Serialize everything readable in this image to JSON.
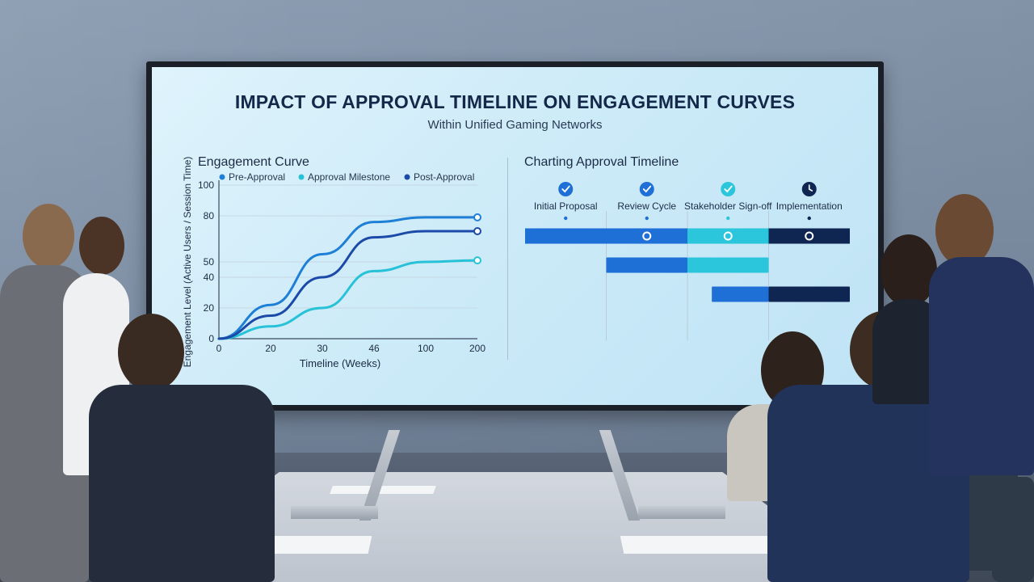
{
  "screen": {
    "title": "IMPACT OF APPROVAL TIMELINE ON ENGAGEMENT CURVES",
    "subtitle": "Within Unified Gaming Networks"
  },
  "colors": {
    "pre_approval": "#1e7fd6",
    "approval_milestone": "#27c2d8",
    "post_approval": "#1b4aa8",
    "implementation": "#0f2552",
    "title": "#14284a"
  },
  "chart_data": [
    {
      "type": "line",
      "title": "Engagement Curve",
      "xlabel": "Timeline (Weeks)",
      "ylabel": "Engagement Level (Active Users / Session Time)",
      "x_tick_labels": [
        "0",
        "20",
        "30",
        "46",
        "100",
        "200"
      ],
      "y_ticks": [
        0,
        20,
        40,
        50,
        80,
        100
      ],
      "ylim": [
        0,
        100
      ],
      "grid": "horizontal",
      "legend_position": "top",
      "series": [
        {
          "name": "Pre-Approval",
          "color": "#1e7fd6",
          "values": [
            0,
            22,
            55,
            76,
            79,
            79
          ]
        },
        {
          "name": "Approval Milestone",
          "color": "#27c2d8",
          "values": [
            0,
            8,
            20,
            44,
            50,
            51
          ]
        },
        {
          "name": "Post-Approval",
          "color": "#1b4aa8",
          "values": [
            0,
            15,
            40,
            66,
            70,
            70
          ]
        }
      ]
    },
    {
      "type": "gantt",
      "title": "Charting Approval Timeline",
      "phases": [
        {
          "label": "Initial Proposal",
          "icon": "check-icon"
        },
        {
          "label": "Review Cycle",
          "icon": "check-icon"
        },
        {
          "label": "Stakeholder Sign-off",
          "icon": "check-icon"
        },
        {
          "label": "Implementation",
          "icon": "clock-icon"
        }
      ],
      "rows": [
        {
          "segments": [
            {
              "start": 0,
              "end": 2,
              "color": "#1e6fd6"
            },
            {
              "start": 2,
              "end": 3,
              "color": "#2bc6dc"
            },
            {
              "start": 3,
              "end": 4,
              "color": "#0f2552"
            }
          ],
          "markers": [
            1.5,
            2.5,
            3.5
          ]
        },
        {
          "segments": [
            {
              "start": 1,
              "end": 2,
              "color": "#1e6fd6"
            },
            {
              "start": 2,
              "end": 3,
              "color": "#2bc6dc"
            }
          ],
          "markers": []
        },
        {
          "segments": [
            {
              "start": 2.3,
              "end": 3,
              "color": "#1e6fd6"
            },
            {
              "start": 3,
              "end": 4,
              "color": "#0f2552"
            }
          ],
          "markers": []
        }
      ]
    }
  ]
}
